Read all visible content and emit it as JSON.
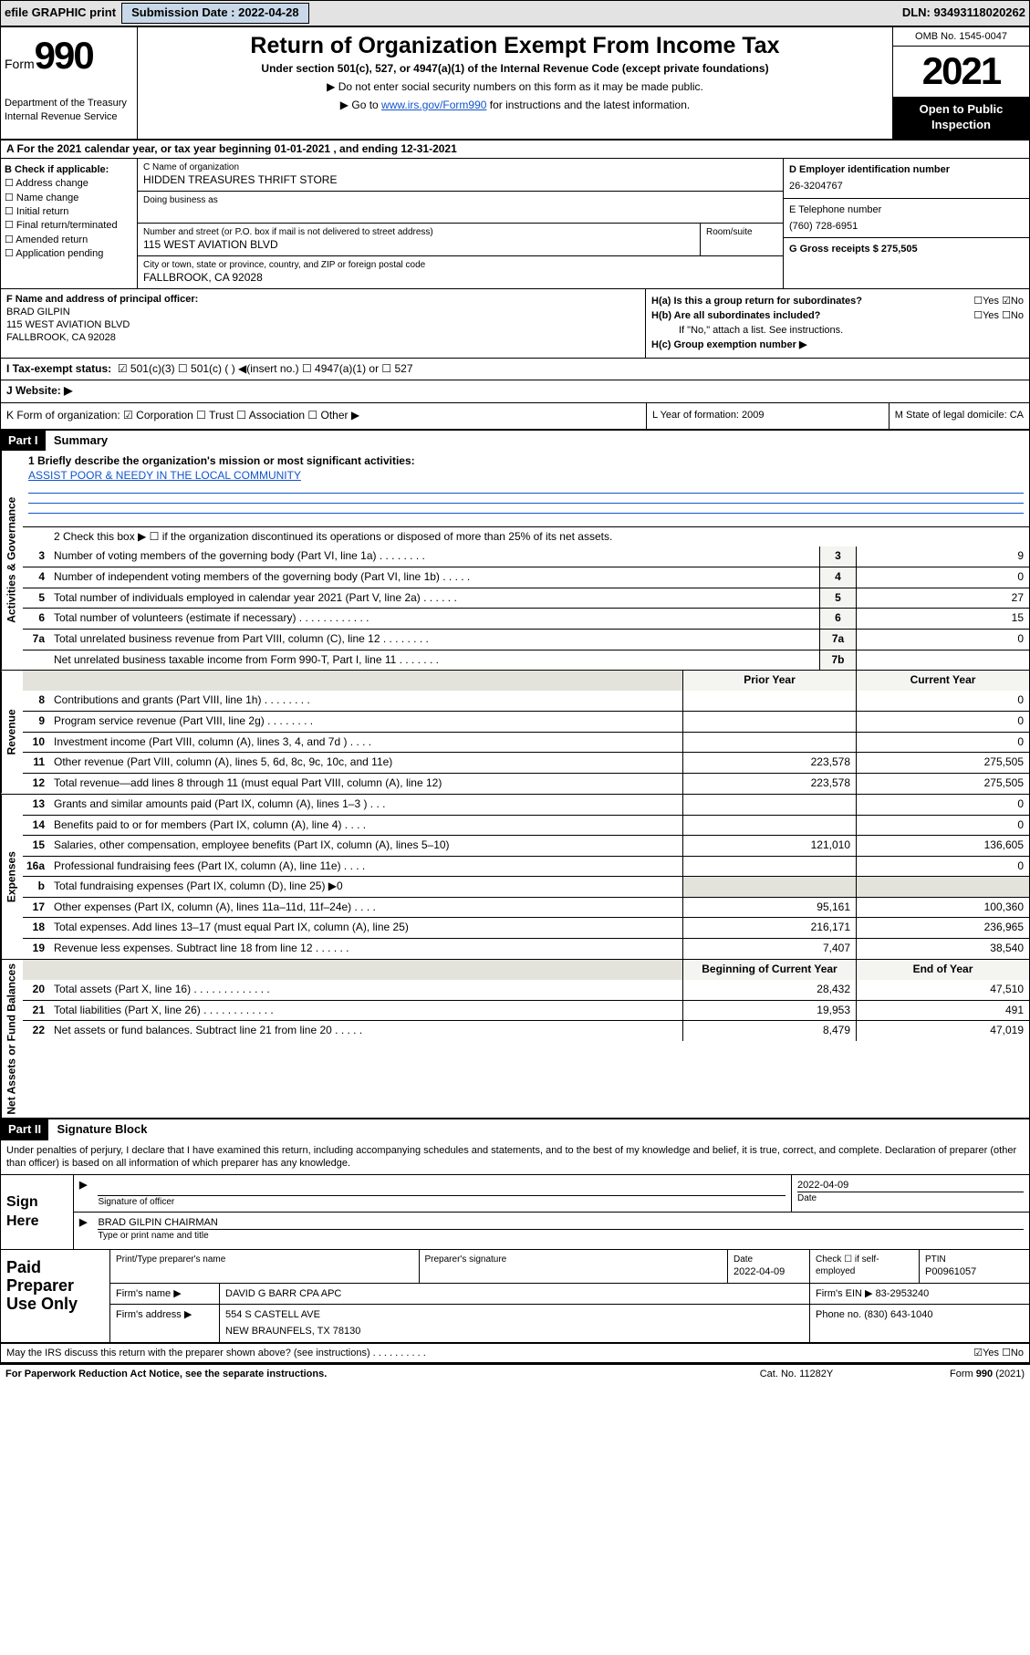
{
  "topbar": {
    "efile": "efile GRAPHIC print",
    "subdate_lbl": "Submission Date : 2022-04-28",
    "dln": "DLN: 93493118020262"
  },
  "header": {
    "form_word": "Form",
    "form_num": "990",
    "dept": "Department of the Treasury Internal Revenue Service",
    "title": "Return of Organization Exempt From Income Tax",
    "sub": "Under section 501(c), 527, or 4947(a)(1) of the Internal Revenue Code (except private foundations)",
    "note1": "▶ Do not enter social security numbers on this form as it may be made public.",
    "note2_pre": "▶ Go to ",
    "note2_link": "www.irs.gov/Form990",
    "note2_post": " for instructions and the latest information.",
    "omb": "OMB No. 1545-0047",
    "year": "2021",
    "open": "Open to Public Inspection"
  },
  "lineA": "A For the 2021 calendar year, or tax year beginning 01-01-2021  , and ending 12-31-2021",
  "entity": {
    "B_lbl": "B Check if applicable:",
    "B_opts": [
      "☐ Address change",
      "☐ Name change",
      "☐ Initial return",
      "☐ Final return/terminated",
      "☐ Amended return",
      "☐ Application pending"
    ],
    "C_lbl": "C Name of organization",
    "C_name": "HIDDEN TREASURES THRIFT STORE",
    "dba_lbl": "Doing business as",
    "street_lbl": "Number and street (or P.O. box if mail is not delivered to street address)",
    "room_lbl": "Room/suite",
    "street": "115 WEST AVIATION BLVD",
    "city_lbl": "City or town, state or province, country, and ZIP or foreign postal code",
    "city": "FALLBROOK, CA  92028",
    "D_lbl": "D Employer identification number",
    "D_val": "26-3204767",
    "E_lbl": "E Telephone number",
    "E_val": "(760) 728-6951",
    "G_lbl": "G Gross receipts $ 275,505"
  },
  "officer": {
    "F_lbl": "F Name and address of principal officer:",
    "name": "BRAD GILPIN",
    "addr1": "115 WEST AVIATION BLVD",
    "addr2": "FALLBROOK, CA  92028",
    "Ha": "H(a)  Is this a group return for subordinates?",
    "Ha_ans": "☐Yes ☑No",
    "Hb": "H(b)  Are all subordinates included?",
    "Hb_ans": "☐Yes ☐No",
    "Hb_note": "If \"No,\" attach a list. See instructions.",
    "Hc": "H(c)  Group exemption number ▶"
  },
  "I": {
    "lbl": "I  Tax-exempt status:",
    "opts": "☑ 501(c)(3)   ☐ 501(c) (  ) ◀(insert no.)   ☐ 4947(a)(1) or  ☐ 527"
  },
  "J": {
    "lbl": "J  Website: ▶"
  },
  "K": {
    "lbl": "K Form of organization:  ☑ Corporation  ☐ Trust  ☐ Association  ☐ Other ▶"
  },
  "L": {
    "lbl": "L Year of formation: 2009"
  },
  "M": {
    "lbl": "M State of legal domicile: CA"
  },
  "partI": {
    "hdr": "Part I",
    "title": "Summary",
    "side1": "Activities & Governance",
    "side2": "Revenue",
    "side3": "Expenses",
    "side4": "Net Assets or Fund Balances",
    "l1_lbl": "1  Briefly describe the organization's mission or most significant activities:",
    "l1_val": "ASSIST POOR & NEEDY IN THE LOCAL COMMUNITY",
    "l2": "2  Check this box ▶ ☐  if the organization discontinued its operations or disposed of more than 25% of its net assets.",
    "rows_gov": [
      {
        "n": "3",
        "t": "Number of voting members of the governing body (Part VI, line 1a)  .   .   .   .   .   .   .   .",
        "box": "3",
        "v": "9"
      },
      {
        "n": "4",
        "t": "Number of independent voting members of the governing body (Part VI, line 1b)  .   .   .   .   .",
        "box": "4",
        "v": "0"
      },
      {
        "n": "5",
        "t": "Total number of individuals employed in calendar year 2021 (Part V, line 2a)  .   .   .   .   .   .",
        "box": "5",
        "v": "27"
      },
      {
        "n": "6",
        "t": "Total number of volunteers (estimate if necessary)  .   .   .   .   .   .   .   .   .   .   .   .",
        "box": "6",
        "v": "15"
      },
      {
        "n": "7a",
        "t": "Total unrelated business revenue from Part VIII, column (C), line 12  .   .   .   .   .   .   .   .",
        "box": "7a",
        "v": "0"
      },
      {
        "n": "",
        "t": "Net unrelated business taxable income from Form 990-T, Part I, line 11  .   .   .   .   .   .   .",
        "box": "7b",
        "v": ""
      }
    ],
    "col_py": "Prior Year",
    "col_cy": "Current Year",
    "rows_rev": [
      {
        "n": "8",
        "t": "Contributions and grants (Part VIII, line 1h)  .   .   .   .   .   .   .   .",
        "py": "",
        "cy": "0"
      },
      {
        "n": "9",
        "t": "Program service revenue (Part VIII, line 2g)  .   .   .   .   .   .   .   .",
        "py": "",
        "cy": "0"
      },
      {
        "n": "10",
        "t": "Investment income (Part VIII, column (A), lines 3, 4, and 7d )  .   .   .   .",
        "py": "",
        "cy": "0"
      },
      {
        "n": "11",
        "t": "Other revenue (Part VIII, column (A), lines 5, 6d, 8c, 9c, 10c, and 11e)",
        "py": "223,578",
        "cy": "275,505"
      },
      {
        "n": "12",
        "t": "Total revenue—add lines 8 through 11 (must equal Part VIII, column (A), line 12)",
        "py": "223,578",
        "cy": "275,505"
      }
    ],
    "rows_exp": [
      {
        "n": "13",
        "t": "Grants and similar amounts paid (Part IX, column (A), lines 1–3 )  .   .   .",
        "py": "",
        "cy": "0"
      },
      {
        "n": "14",
        "t": "Benefits paid to or for members (Part IX, column (A), line 4)  .   .   .   .",
        "py": "",
        "cy": "0"
      },
      {
        "n": "15",
        "t": "Salaries, other compensation, employee benefits (Part IX, column (A), lines 5–10)",
        "py": "121,010",
        "cy": "136,605"
      },
      {
        "n": "16a",
        "t": "Professional fundraising fees (Part IX, column (A), line 11e)  .   .   .   .",
        "py": "",
        "cy": "0"
      },
      {
        "n": "b",
        "t": "Total fundraising expenses (Part IX, column (D), line 25) ▶0",
        "py": "SHADE",
        "cy": "SHADE"
      },
      {
        "n": "17",
        "t": "Other expenses (Part IX, column (A), lines 11a–11d, 11f–24e)  .   .   .   .",
        "py": "95,161",
        "cy": "100,360"
      },
      {
        "n": "18",
        "t": "Total expenses. Add lines 13–17 (must equal Part IX, column (A), line 25)",
        "py": "216,171",
        "cy": "236,965"
      },
      {
        "n": "19",
        "t": "Revenue less expenses. Subtract line 18 from line 12  .   .   .   .   .   .",
        "py": "7,407",
        "cy": "38,540"
      }
    ],
    "col_boy": "Beginning of Current Year",
    "col_eoy": "End of Year",
    "rows_net": [
      {
        "n": "20",
        "t": "Total assets (Part X, line 16)  .   .   .   .   .   .   .   .   .   .   .   .   .",
        "py": "28,432",
        "cy": "47,510"
      },
      {
        "n": "21",
        "t": "Total liabilities (Part X, line 26)  .   .   .   .   .   .   .   .   .   .   .   .",
        "py": "19,953",
        "cy": "491"
      },
      {
        "n": "22",
        "t": "Net assets or fund balances. Subtract line 21 from line 20  .   .   .   .   .",
        "py": "8,479",
        "cy": "47,019"
      }
    ]
  },
  "partII": {
    "hdr": "Part II",
    "title": "Signature Block",
    "decl": "Under penalties of perjury, I declare that I have examined this return, including accompanying schedules and statements, and to the best of my knowledge and belief, it is true, correct, and complete. Declaration of preparer (other than officer) is based on all information of which preparer has any knowledge.",
    "sign_here": "Sign Here",
    "sig_lbl": "Signature of officer",
    "sig_date": "2022-04-09",
    "date_lbl": "Date",
    "name_title": "BRAD GILPIN  CHAIRMAN",
    "name_lbl": "Type or print name and title",
    "paid_lbl": "Paid Preparer Use Only",
    "pp_name_lbl": "Print/Type preparer's name",
    "pp_sig_lbl": "Preparer's signature",
    "pp_date_lbl": "Date",
    "pp_date": "2022-04-09",
    "pp_check": "Check ☐ if self-employed",
    "pp_ptin_lbl": "PTIN",
    "pp_ptin": "P00961057",
    "firm_name_lbl": "Firm's name    ▶",
    "firm_name": "DAVID G BARR CPA APC",
    "firm_ein_lbl": "Firm's EIN ▶",
    "firm_ein": "83-2953240",
    "firm_addr_lbl": "Firm's address ▶",
    "firm_addr1": "554 S CASTELL AVE",
    "firm_addr2": "NEW BRAUNFELS, TX  78130",
    "phone_lbl": "Phone no.",
    "phone": "(830) 643-1040",
    "discuss": "May the IRS discuss this return with the preparer shown above? (see instructions)  .   .   .   .   .   .   .   .   .   .",
    "discuss_ans": "☑Yes  ☐No"
  },
  "footer": {
    "pra": "For Paperwork Reduction Act Notice, see the separate instructions.",
    "cat": "Cat. No. 11282Y",
    "form": "Form 990 (2021)"
  }
}
